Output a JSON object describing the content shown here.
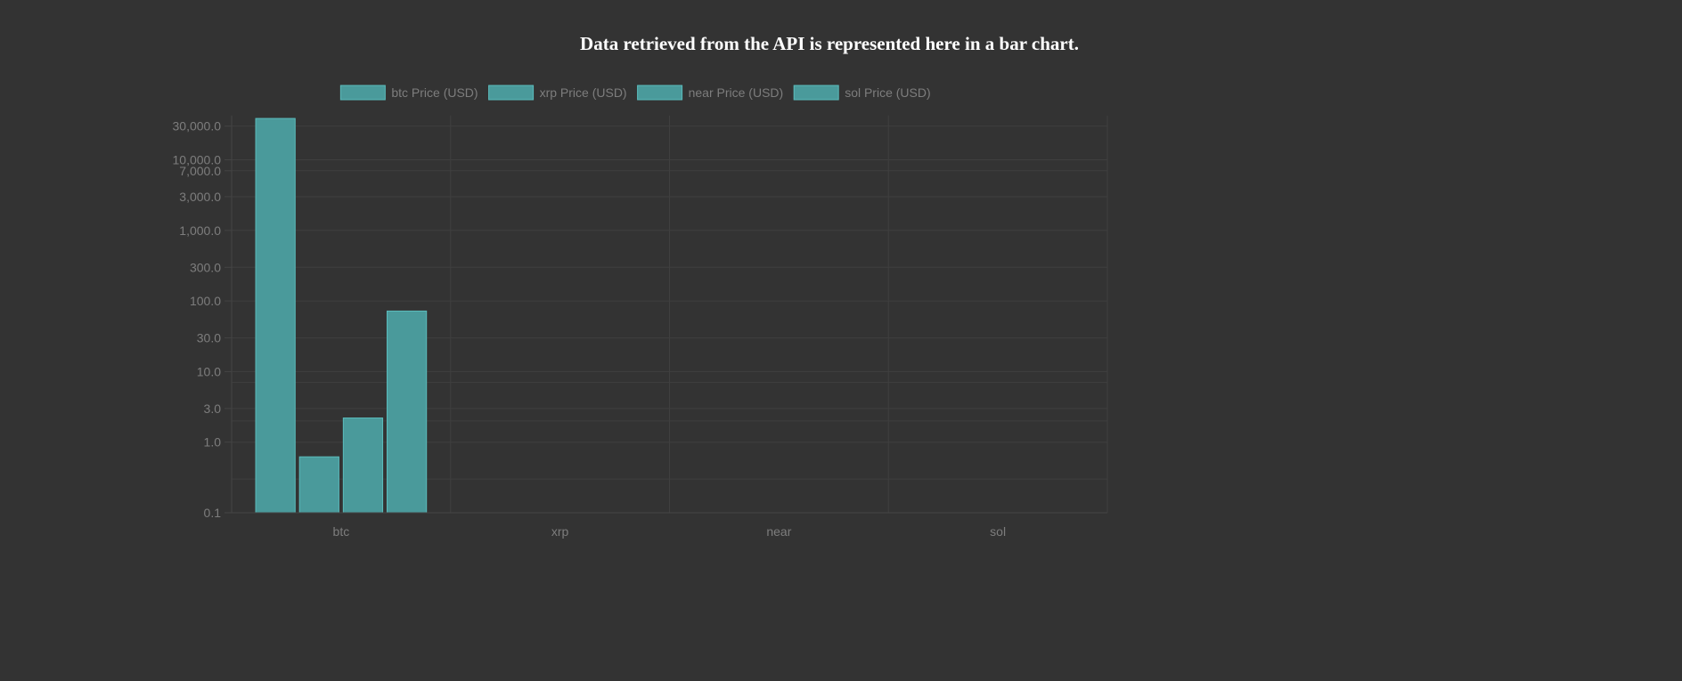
{
  "header": {
    "title": "Data retrieved from the API is represented here in a bar chart."
  },
  "chart_data": {
    "type": "bar",
    "title": "Data retrieved from the API is represented here in a bar chart.",
    "categories": [
      "btc",
      "xrp",
      "near",
      "sol"
    ],
    "series": [
      {
        "name": "btc Price (USD)",
        "values": [
          38500,
          null,
          null,
          null
        ]
      },
      {
        "name": "xrp Price (USD)",
        "values": [
          0.62,
          null,
          null,
          null
        ]
      },
      {
        "name": "near Price (USD)",
        "values": [
          2.2,
          null,
          null,
          null
        ]
      },
      {
        "name": "sol Price (USD)",
        "values": [
          72,
          null,
          null,
          null
        ]
      }
    ],
    "y_scale": "log",
    "ylim": [
      0.1,
      40000
    ],
    "y_ticks": [
      0.1,
      1,
      3,
      10,
      30,
      100,
      300,
      1000,
      3000,
      7000,
      10000,
      30000
    ],
    "y_tick_labels": [
      "0.1",
      "1.0",
      "3.0",
      "10.0",
      "30.0",
      "100.0",
      "300.0",
      "1,000.0",
      "3,000.0",
      "7,000.0",
      "10,000.0",
      "30,000.0"
    ],
    "xlabel": "",
    "ylabel": "",
    "grid": true,
    "legend_position": "top",
    "colors": {
      "bar_fill": "#4a9a9b",
      "bar_border": "#5bbcbc",
      "grid": "#3f3f3f",
      "axis": "#444444",
      "tick_text": "#7d7d7d",
      "background": "#333333",
      "title_text": "#ffffff"
    }
  }
}
